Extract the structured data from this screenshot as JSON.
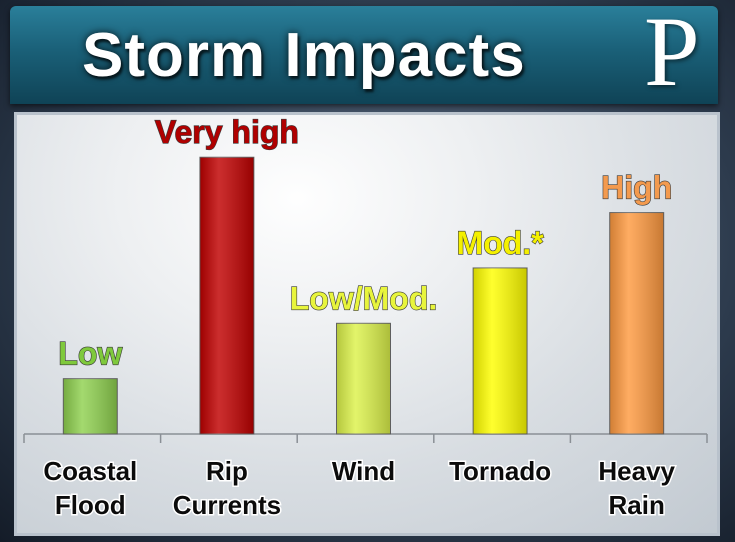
{
  "header": {
    "title": "Storm Impacts",
    "logo_letter": "P"
  },
  "chart_data": {
    "type": "bar",
    "categories": [
      [
        "Coastal",
        "Flood"
      ],
      [
        "Rip",
        "Currents"
      ],
      [
        "Wind"
      ],
      [
        "Tornado"
      ],
      [
        "Heavy",
        "Rain"
      ]
    ],
    "values": [
      1,
      5,
      2,
      3,
      4
    ],
    "value_labels": [
      "Low",
      "Very high",
      "Low/Mod.",
      "Mod.*",
      "High"
    ],
    "colors": [
      "#8fd14f",
      "#c00000",
      "#dcf24a",
      "#ffff00",
      "#ff9a40"
    ],
    "label_colors": [
      "#7fc93c",
      "#b00000",
      "#e8f53c",
      "#f4f000",
      "#f39a4e"
    ],
    "ylim": [
      0,
      5.6
    ],
    "grid": false
  }
}
